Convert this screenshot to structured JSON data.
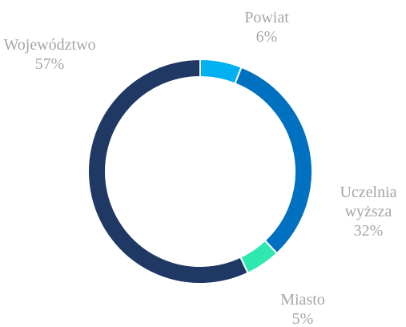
{
  "chart_data": {
    "type": "donut",
    "categories": [
      "Powiat",
      "Uczelnia wyższa",
      "Miasto",
      "Województwo"
    ],
    "values": [
      6,
      32,
      5,
      57
    ],
    "value_labels": [
      "6%",
      "32%",
      "5%",
      "57%"
    ],
    "colors": [
      "#00b0f0",
      "#0070c0",
      "#2ee8b0",
      "#1f3864"
    ]
  }
}
